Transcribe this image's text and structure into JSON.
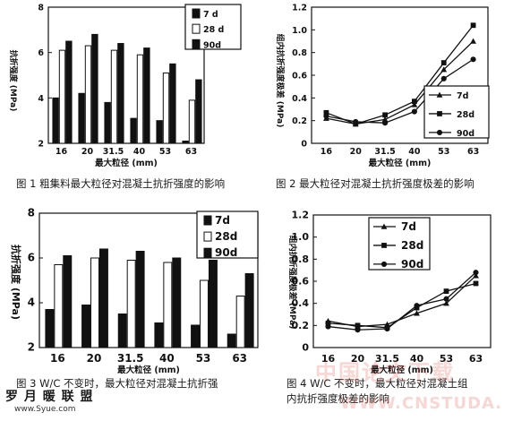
{
  "figures": {
    "fig1": "图 1    粗集料最大粒径对混凝土抗折强度的影响",
    "fig2": "图 2    最大粒径对混凝土抗折强度极差的影响",
    "fig3_line1": "图 3    W/C 不变时，最大粒径对混凝土抗折强",
    "fig4_line1": "图 4    W/C 不变时，最大粒径对混凝土组",
    "fig4_line2": "内抗折强度极差的影响"
  },
  "watermarks": {
    "logo_cn": "罗 月 暖 联 盟",
    "logo_url": "www.Syue.com",
    "download_cn": "中国论文下载",
    "download_url": "WWW.CNSTUDA."
  },
  "chart_data": [
    {
      "type": "bar",
      "categories": [
        "16",
        "20",
        "31.5",
        "40",
        "53",
        "63"
      ],
      "series": [
        {
          "name": "7 d",
          "values": [
            4.0,
            4.2,
            3.8,
            3.1,
            3.0,
            2.1
          ]
        },
        {
          "name": "28 d",
          "values": [
            6.1,
            6.3,
            6.1,
            5.9,
            5.1,
            3.9
          ]
        },
        {
          "name": "90d",
          "values": [
            6.5,
            6.8,
            6.4,
            6.2,
            5.5,
            4.8
          ]
        }
      ],
      "xlabel": "最大粒径 (mm)",
      "ylabel": "抗折强度 (MPa)",
      "ylim": [
        2,
        8
      ],
      "yticks": [
        "2",
        "4",
        "6",
        "8"
      ],
      "legend": "top-right",
      "colors": {
        "s0": "#111111",
        "s1": "#ffffff",
        "s2": "#111111"
      }
    },
    {
      "type": "line",
      "categories": [
        "16",
        "20",
        "31.5",
        "40",
        "53",
        "63"
      ],
      "series": [
        {
          "name": "7d",
          "values": [
            0.22,
            0.17,
            0.21,
            0.34,
            0.65,
            0.9
          ]
        },
        {
          "name": "28d",
          "values": [
            0.27,
            0.17,
            0.25,
            0.37,
            0.71,
            1.04
          ]
        },
        {
          "name": "90d",
          "values": [
            0.24,
            0.19,
            0.18,
            0.28,
            0.57,
            0.74
          ]
        }
      ],
      "xlabel": "最大粒径 (mm)",
      "ylabel": "组内抗折强度极差 (MPa)",
      "ylim": [
        0,
        1.2
      ],
      "yticks": [
        "0",
        "0.2",
        "0.4",
        "0.6",
        "0.8",
        "1.0",
        "1.2"
      ],
      "legend": "right"
    },
    {
      "type": "bar",
      "categories": [
        "16",
        "20",
        "31.5",
        "40",
        "53",
        "63"
      ],
      "series": [
        {
          "name": "7d",
          "values": [
            3.7,
            3.9,
            3.5,
            3.1,
            3.0,
            2.6
          ]
        },
        {
          "name": "28d",
          "values": [
            5.7,
            6.0,
            5.9,
            5.8,
            5.0,
            4.3
          ]
        },
        {
          "name": "90d",
          "values": [
            6.1,
            6.4,
            6.3,
            6.0,
            5.9,
            5.3
          ]
        }
      ],
      "xlabel": "最大粒径 (mm)",
      "ylabel": "抗折强度 (MPa)",
      "ylim": [
        2,
        8
      ],
      "yticks": [
        "2",
        "4",
        "6",
        "8"
      ],
      "legend": "top-right"
    },
    {
      "type": "line",
      "categories": [
        "16",
        "20",
        "31.5",
        "40",
        "53",
        "63"
      ],
      "series": [
        {
          "name": "7d",
          "values": [
            0.24,
            0.19,
            0.21,
            0.31,
            0.4,
            0.65
          ]
        },
        {
          "name": "28d",
          "values": [
            0.22,
            0.2,
            0.18,
            0.36,
            0.51,
            0.58
          ]
        },
        {
          "name": "90d",
          "values": [
            0.19,
            0.16,
            0.17,
            0.38,
            0.44,
            0.68
          ]
        }
      ],
      "xlabel": "最大粒径 (mm)",
      "ylabel": "组内抗折强度极差 (MPa)",
      "ylim": [
        0,
        1.2
      ],
      "yticks": [
        "0",
        "0.2",
        "0.4",
        "0.6",
        "0.8",
        "1.0",
        "1.2"
      ],
      "legend": "top-right"
    }
  ]
}
